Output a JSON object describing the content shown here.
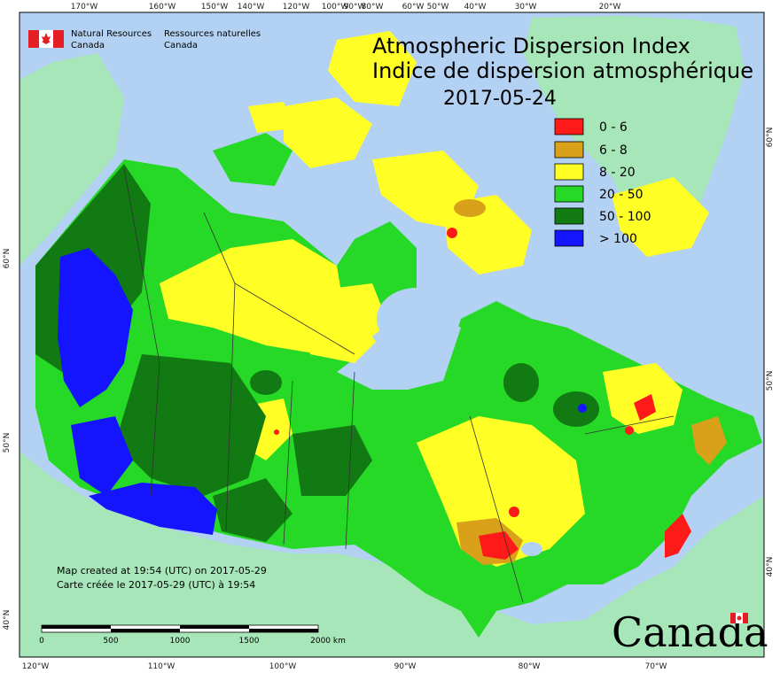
{
  "header": {
    "agency_en_line1": "Natural Resources",
    "agency_en_line2": "Canada",
    "agency_fr_line1": "Ressources naturelles",
    "agency_fr_line2": "Canada"
  },
  "title": {
    "en": "Atmospheric Dispersion Index",
    "fr": "Indice de dispersion atmosphérique",
    "date": "2017-05-24"
  },
  "legend": [
    {
      "label": "0 - 6",
      "color": "#ff1a1a"
    },
    {
      "label": "6 - 8",
      "color": "#d9a01a"
    },
    {
      "label": "8 - 20",
      "color": "#ffff26"
    },
    {
      "label": "20 - 50",
      "color": "#26d926"
    },
    {
      "label": "50 - 100",
      "color": "#127a12"
    },
    {
      "label": "> 100",
      "color": "#1414ff"
    }
  ],
  "notes": {
    "created_en": "Map created at 19:54 (UTC) on 2017-05-29",
    "created_fr": "Carte créée le 2017-05-29 (UTC) à 19:54"
  },
  "scale_bar": {
    "labels": [
      "0",
      "500",
      "1000",
      "1500",
      "2000 km"
    ]
  },
  "graticule": {
    "top": [
      "170°W",
      "160°W",
      "150°W",
      "140°W",
      "120°W",
      "100°W",
      "90°W",
      "80°W",
      "60°W",
      "50°W",
      "40°W",
      "30°W",
      "20°W"
    ],
    "bottom": [
      "120°W",
      "110°W",
      "100°W",
      "90°W",
      "80°W",
      "70°W"
    ],
    "left": [
      "60°N",
      "50°N",
      "40°N"
    ],
    "right": [
      "60°N",
      "50°N",
      "40°N"
    ]
  },
  "wordmark": "Canada",
  "colors": {
    "ocean": "#b3d1f2",
    "land_outside": "#a6e6b8",
    "flag_red": "#e31e24"
  }
}
